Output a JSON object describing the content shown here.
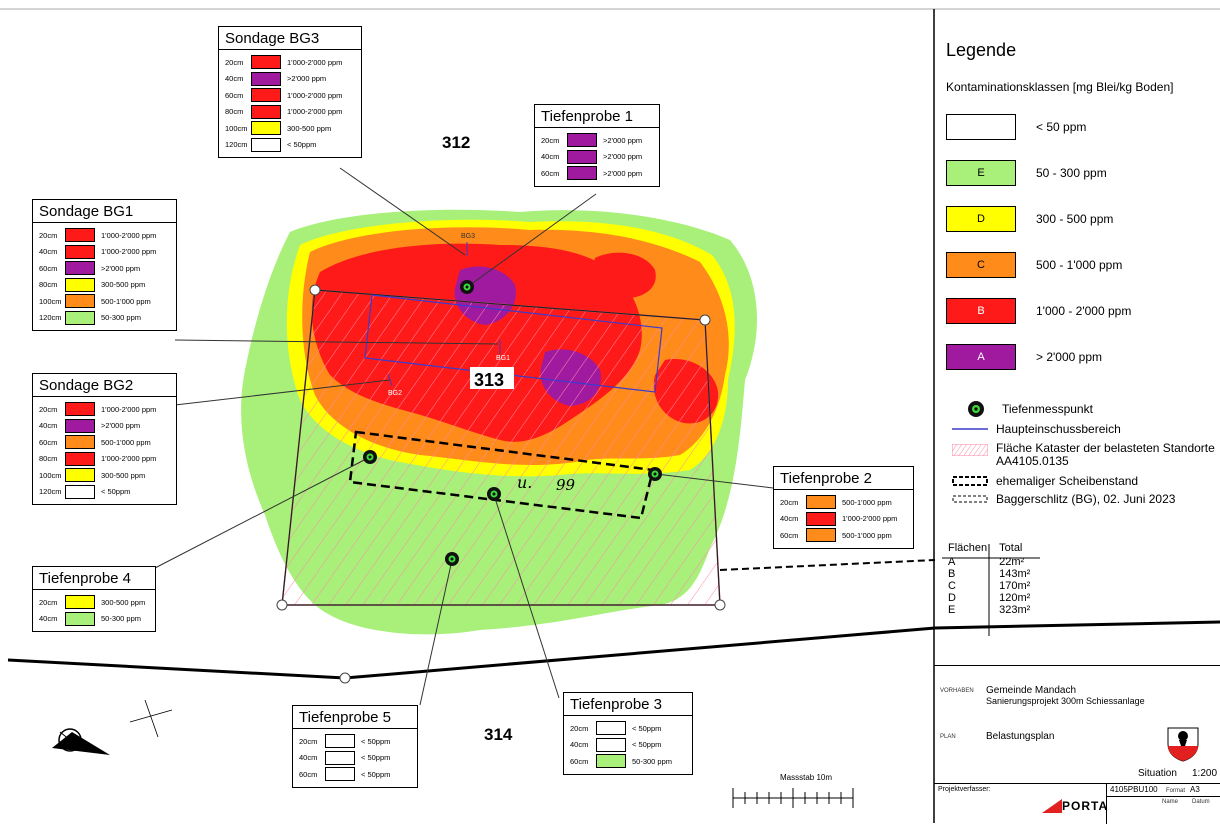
{
  "map": {
    "parcel_labels": [
      "312",
      "313",
      "314"
    ],
    "handwritten_label": "u.",
    "handwritten_number": "99",
    "sample_tags": {
      "bg1": "BG1",
      "bg2": "BG2",
      "bg3": "BG3"
    },
    "scale_bar_label": "Massstab 10m"
  },
  "callouts": {
    "bg3": {
      "title": "Sondage BG3",
      "rows": [
        {
          "depth": "20cm",
          "value": "1'000-2'000 ppm",
          "color": "#ff1a1a"
        },
        {
          "depth": "40cm",
          "value": ">2'000 ppm",
          "color": "#a01aa0"
        },
        {
          "depth": "60cm",
          "value": "1'000-2'000 ppm",
          "color": "#ff1a1a"
        },
        {
          "depth": "80cm",
          "value": "1'000-2'000 ppm",
          "color": "#ff1a1a"
        },
        {
          "depth": "100cm",
          "value": "300-500 ppm",
          "color": "#ffff00"
        },
        {
          "depth": "120cm",
          "value": "< 50ppm",
          "color": "#ffffff"
        }
      ]
    },
    "bg1": {
      "title": "Sondage BG1",
      "rows": [
        {
          "depth": "20cm",
          "value": "1'000-2'000 ppm",
          "color": "#ff1a1a"
        },
        {
          "depth": "40cm",
          "value": "1'000-2'000 ppm",
          "color": "#ff1a1a"
        },
        {
          "depth": "60cm",
          "value": ">2'000 ppm",
          "color": "#a01aa0"
        },
        {
          "depth": "80cm",
          "value": "300-500 ppm",
          "color": "#ffff00"
        },
        {
          "depth": "100cm",
          "value": "500-1'000 ppm",
          "color": "#ff8c1a"
        },
        {
          "depth": "120cm",
          "value": "50-300 ppm",
          "color": "#a8f07a"
        }
      ]
    },
    "bg2": {
      "title": "Sondage BG2",
      "rows": [
        {
          "depth": "20cm",
          "value": "1'000-2'000 ppm",
          "color": "#ff1a1a"
        },
        {
          "depth": "40cm",
          "value": ">2'000 ppm",
          "color": "#a01aa0"
        },
        {
          "depth": "60cm",
          "value": "500-1'000 ppm",
          "color": "#ff8c1a"
        },
        {
          "depth": "80cm",
          "value": "1'000-2'000 ppm",
          "color": "#ff1a1a"
        },
        {
          "depth": "100cm",
          "value": "300-500 ppm",
          "color": "#ffff00"
        },
        {
          "depth": "120cm",
          "value": "< 50ppm",
          "color": "#ffffff"
        }
      ]
    },
    "tp1": {
      "title": "Tiefenprobe 1",
      "rows": [
        {
          "depth": "20cm",
          "value": ">2'000 ppm",
          "color": "#a01aa0"
        },
        {
          "depth": "40cm",
          "value": ">2'000 ppm",
          "color": "#a01aa0"
        },
        {
          "depth": "60cm",
          "value": ">2'000 ppm",
          "color": "#a01aa0"
        }
      ]
    },
    "tp2": {
      "title": "Tiefenprobe 2",
      "rows": [
        {
          "depth": "20cm",
          "value": "500-1'000 ppm",
          "color": "#ff8c1a"
        },
        {
          "depth": "40cm",
          "value": "1'000-2'000 ppm",
          "color": "#ff1a1a"
        },
        {
          "depth": "60cm",
          "value": "500-1'000 ppm",
          "color": "#ff8c1a"
        }
      ]
    },
    "tp4": {
      "title": "Tiefenprobe 4",
      "rows": [
        {
          "depth": "20cm",
          "value": "300-500 ppm",
          "color": "#ffff00"
        },
        {
          "depth": "40cm",
          "value": "50-300 ppm",
          "color": "#a8f07a"
        }
      ]
    },
    "tp5": {
      "title": "Tiefenprobe 5",
      "rows": [
        {
          "depth": "20cm",
          "value": "< 50ppm",
          "color": "#ffffff"
        },
        {
          "depth": "40cm",
          "value": "< 50ppm",
          "color": "#ffffff"
        },
        {
          "depth": "60cm",
          "value": "< 50ppm",
          "color": "#ffffff"
        }
      ]
    },
    "tp3": {
      "title": "Tiefenprobe 3",
      "rows": [
        {
          "depth": "20cm",
          "value": "< 50ppm",
          "color": "#ffffff"
        },
        {
          "depth": "40cm",
          "value": "< 50ppm",
          "color": "#ffffff"
        },
        {
          "depth": "60cm",
          "value": "50-300 ppm",
          "color": "#a8f07a"
        }
      ]
    }
  },
  "legend": {
    "title": "Legende",
    "subtitle": "Kontaminationsklassen [mg Blei/kg Boden]",
    "classes": [
      {
        "code": "",
        "label": "< 50 ppm",
        "color": "#ffffff"
      },
      {
        "code": "E",
        "label": "50 - 300 ppm",
        "color": "#a8f07a"
      },
      {
        "code": "D",
        "label": "300 - 500 ppm",
        "color": "#ffff00"
      },
      {
        "code": "C",
        "label": "500 - 1'000 ppm",
        "color": "#ff8c1a"
      },
      {
        "code": "B",
        "label": "1'000 - 2'000 ppm",
        "color": "#ff1a1a"
      },
      {
        "code": "A",
        "label": "> 2'000 ppm",
        "color": "#a01aa0"
      }
    ],
    "symbols": {
      "measure_point": "Tiefenmesspunkt",
      "main_area": "Haupteinschussbereich",
      "cadastre_1": "Fläche Kataster der belasteten Standorte",
      "cadastre_2": "AA4105.0135",
      "former_stand": "ehemaliger Scheibenstand",
      "trench": "Baggerschlitz (BG), 02. Juni 2023"
    }
  },
  "areas": {
    "header": [
      "Flächen",
      "Total"
    ],
    "rows": [
      [
        "A",
        "22m²"
      ],
      [
        "B",
        "143m²"
      ],
      [
        "C",
        "170m²"
      ],
      [
        "D",
        "120m²"
      ],
      [
        "E",
        "323m²"
      ]
    ]
  },
  "titleblock": {
    "vorhaben_tag": "VORHABEN",
    "vorhaben_1": "Gemeinde Mandach",
    "vorhaben_2": "Sanierungsprojekt 300m Schiessanlage",
    "plan_tag": "PLAN",
    "plan": "Belastungsplan",
    "situation": "Situation",
    "scale": "1:200",
    "author_label": "Projektverfasser:",
    "plan_no": "4105PBU100",
    "format_label": "Format",
    "format": "A3",
    "company": "PORTA",
    "col_name": "Name",
    "col_date": "Datum"
  }
}
